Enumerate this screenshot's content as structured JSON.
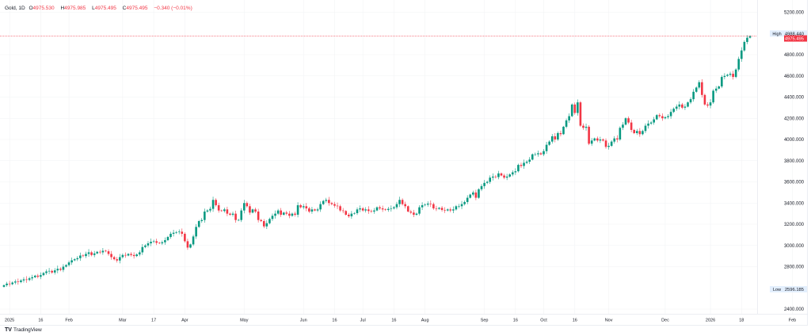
{
  "legend": {
    "symbol": "Gold, 1D",
    "o_label": "O",
    "o": "4975.530",
    "h_label": "H",
    "h": "4975.985",
    "l_label": "L",
    "l": "4975.495",
    "c_label": "C",
    "c": "4975.495",
    "change": "−0.340 (−0.01%)"
  },
  "brand": {
    "logo_text": "TV",
    "name": "TradingView"
  },
  "colors": {
    "up": "#089981",
    "down": "#f23645",
    "grid": "#f2f3f5",
    "text": "#131722",
    "badge": "#e3effd"
  },
  "chart_data": {
    "type": "candlestick",
    "title": "Gold, 1D",
    "ylim": [
      2400,
      5200
    ],
    "y_ticks": [
      2400,
      2800,
      3000,
      3200,
      3400,
      3600,
      3800,
      4000,
      4200,
      4400,
      4600,
      4800,
      5200
    ],
    "y_tick_labels": [
      "2400.000",
      "2800.000",
      "3000.000",
      "3200.000",
      "3400.000",
      "3600.000",
      "3800.000",
      "4000.000",
      "4200.000",
      "4400.000",
      "4600.000",
      "4800.000",
      "5200.000"
    ],
    "x_ticks": [
      {
        "label": "2025",
        "index": 2
      },
      {
        "label": "16",
        "index": 13
      },
      {
        "label": "Feb",
        "index": 23
      },
      {
        "label": "Mar",
        "index": 42
      },
      {
        "label": "17",
        "index": 53
      },
      {
        "label": "Apr",
        "index": 64
      },
      {
        "label": "May",
        "index": 85
      },
      {
        "label": "Jun",
        "index": 106
      },
      {
        "label": "16",
        "index": 117
      },
      {
        "label": "Jul",
        "index": 127
      },
      {
        "label": "16",
        "index": 138
      },
      {
        "label": "Aug",
        "index": 149
      },
      {
        "label": "Sep",
        "index": 170
      },
      {
        "label": "16",
        "index": 181
      },
      {
        "label": "Oct",
        "index": 191
      },
      {
        "label": "16",
        "index": 202
      },
      {
        "label": "Nov",
        "index": 214
      },
      {
        "label": "Dec",
        "index": 234
      },
      {
        "label": "2026",
        "index": 250
      },
      {
        "label": "18",
        "index": 261
      },
      {
        "label": "Feb",
        "index": 279
      }
    ],
    "high_marker": {
      "label": "High",
      "value": "4988.440"
    },
    "low_marker": {
      "label": "Low",
      "value": "2596.185"
    },
    "last_price": "4975.495",
    "first_open": 2610,
    "closes": [
      2625,
      2640,
      2635,
      2650,
      2660,
      2655,
      2670,
      2680,
      2675,
      2690,
      2700,
      2715,
      2705,
      2720,
      2740,
      2755,
      2760,
      2745,
      2765,
      2780,
      2770,
      2800,
      2815,
      2840,
      2860,
      2870,
      2880,
      2905,
      2900,
      2920,
      2935,
      2910,
      2925,
      2940,
      2935,
      2950,
      2945,
      2920,
      2890,
      2870,
      2858,
      2890,
      2910,
      2905,
      2920,
      2910,
      2900,
      2915,
      2935,
      2985,
      3000,
      3020,
      3035,
      3040,
      3025,
      3020,
      3030,
      3050,
      3080,
      3110,
      3120,
      3125,
      3130,
      3110,
      3040,
      2980,
      3010,
      3085,
      3175,
      3230,
      3240,
      3320,
      3330,
      3345,
      3430,
      3380,
      3330,
      3325,
      3340,
      3300,
      3290,
      3300,
      3240,
      3240,
      3330,
      3400,
      3370,
      3310,
      3340,
      3320,
      3240,
      3230,
      3180,
      3210,
      3250,
      3280,
      3300,
      3330,
      3290,
      3310,
      3300,
      3280,
      3300,
      3290,
      3380,
      3360,
      3370,
      3350,
      3320,
      3340,
      3330,
      3340,
      3390,
      3420,
      3430,
      3400,
      3390,
      3375,
      3370,
      3330,
      3325,
      3290,
      3275,
      3300,
      3305,
      3340,
      3350,
      3330,
      3340,
      3325,
      3320,
      3330,
      3360,
      3350,
      3340,
      3335,
      3345,
      3350,
      3360,
      3390,
      3430,
      3390,
      3370,
      3320,
      3310,
      3290,
      3300,
      3360,
      3380,
      3385,
      3395,
      3390,
      3350,
      3345,
      3355,
      3335,
      3330,
      3340,
      3330,
      3340,
      3370,
      3370,
      3390,
      3410,
      3450,
      3480,
      3500,
      3450,
      3530,
      3560,
      3590,
      3600,
      3640,
      3650,
      3645,
      3680,
      3660,
      3640,
      3650,
      3670,
      3690,
      3700,
      3760,
      3750,
      3780,
      3790,
      3810,
      3860,
      3860,
      3870,
      3860,
      3890,
      3950,
      3980,
      4030,
      4000,
      4060,
      4050,
      4120,
      4180,
      4220,
      4330,
      4250,
      4350,
      4130,
      4110,
      4120,
      3960,
      3990,
      4010,
      3990,
      4000,
      3990,
      3930,
      3940,
      3980,
      4010,
      4000,
      4110,
      4140,
      4200,
      4160,
      4090,
      4060,
      4080,
      4050,
      4080,
      4130,
      4150,
      4160,
      4190,
      4230,
      4220,
      4200,
      4210,
      4220,
      4260,
      4290,
      4310,
      4330,
      4300,
      4310,
      4350,
      4380,
      4450,
      4490,
      4540,
      4420,
      4330,
      4320,
      4350,
      4460,
      4480,
      4500,
      4590,
      4600,
      4610,
      4620,
      4590,
      4660,
      4760,
      4840,
      4920,
      4960,
      4975.495
    ]
  }
}
